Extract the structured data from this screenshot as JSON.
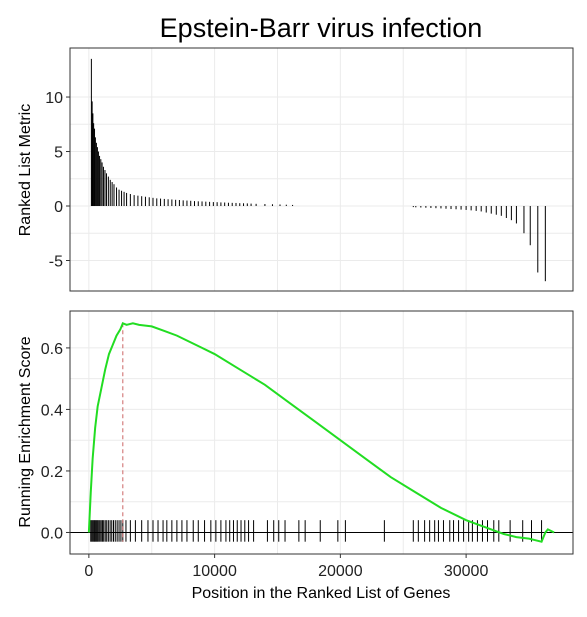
{
  "title": "Epstein-Barr virus infection",
  "chart_data": [
    {
      "type": "bar",
      "name": "ranked-list-metric",
      "ylabel": "Ranked List Metric",
      "xlabel": "",
      "xlim": [
        -1500,
        38500
      ],
      "ylim": [
        -7.8,
        14.5
      ],
      "y_ticks": [
        -5,
        0,
        5,
        10
      ],
      "x_grid": [
        0,
        10000,
        20000,
        30000
      ],
      "grid": true,
      "x": [
        200,
        260,
        320,
        380,
        450,
        520,
        600,
        680,
        760,
        850,
        950,
        1050,
        1160,
        1280,
        1400,
        1550,
        1700,
        1850,
        2000,
        2200,
        2400,
        2600,
        2800,
        3000,
        3300,
        3600,
        3900,
        4200,
        4500,
        4800,
        5100,
        5400,
        5700,
        6000,
        6300,
        6600,
        6900,
        7200,
        7500,
        7800,
        8100,
        8400,
        8700,
        9000,
        9300,
        9600,
        9900,
        10200,
        10500,
        10800,
        11100,
        11400,
        11700,
        12000,
        12300,
        12600,
        12900,
        13300,
        14000,
        14600,
        15200,
        15700,
        16200,
        25800,
        26000,
        26400,
        26800,
        27200,
        27600,
        28000,
        28400,
        28800,
        29200,
        29600,
        30000,
        30400,
        30800,
        31200,
        31600,
        32000,
        32400,
        32800,
        33200,
        33600,
        34000,
        34600,
        35100,
        35700,
        36300
      ],
      "values": [
        13.5,
        9.6,
        8.5,
        7.6,
        7.1,
        6.3,
        5.8,
        5.4,
        5.0,
        4.6,
        4.3,
        4.0,
        3.6,
        3.3,
        3.0,
        2.7,
        2.4,
        2.2,
        2.0,
        1.7,
        1.5,
        1.4,
        1.3,
        1.2,
        1.1,
        1.0,
        0.95,
        0.9,
        0.85,
        0.8,
        0.75,
        0.7,
        0.68,
        0.65,
        0.62,
        0.6,
        0.57,
        0.55,
        0.52,
        0.5,
        0.48,
        0.45,
        0.43,
        0.42,
        0.4,
        0.38,
        0.36,
        0.35,
        0.33,
        0.32,
        0.3,
        0.29,
        0.28,
        0.26,
        0.25,
        0.24,
        0.22,
        0.2,
        0.18,
        0.16,
        0.14,
        0.12,
        0.1,
        -0.1,
        -0.12,
        -0.14,
        -0.16,
        -0.18,
        -0.2,
        -0.22,
        -0.25,
        -0.28,
        -0.3,
        -0.33,
        -0.36,
        -0.4,
        -0.45,
        -0.5,
        -0.6,
        -0.7,
        -0.8,
        -0.9,
        -1.1,
        -1.3,
        -1.6,
        -2.5,
        -3.6,
        -6.1,
        -6.9
      ]
    },
    {
      "type": "line",
      "name": "running-enrichment-score",
      "xlabel": "Position in the Ranked List of Genes",
      "ylabel": "Running Enrichment Score",
      "xlim": [
        -1500,
        38500
      ],
      "ylim": [
        -0.07,
        0.72
      ],
      "x_ticks": [
        0,
        10000,
        20000,
        30000
      ],
      "y_ticks": [
        0.0,
        0.2,
        0.4,
        0.6
      ],
      "y_tick_labels": [
        "0.0",
        "0.2",
        "0.4",
        "0.6"
      ],
      "grid": true,
      "series": [
        {
          "color": "#22dd22",
          "x": [
            0,
            150,
            300,
            500,
            700,
            1000,
            1300,
            1600,
            1900,
            2200,
            2500,
            2700,
            3000,
            3500,
            4000,
            5000,
            6000,
            7000,
            8000,
            9000,
            10000,
            12000,
            14000,
            16000,
            18000,
            20000,
            22000,
            24000,
            26000,
            28000,
            30000,
            32000,
            33000,
            34000,
            35000,
            35500,
            36000,
            36300,
            36500,
            37000
          ],
          "y": [
            0.0,
            0.13,
            0.24,
            0.34,
            0.41,
            0.47,
            0.53,
            0.58,
            0.61,
            0.64,
            0.66,
            0.68,
            0.675,
            0.68,
            0.675,
            0.67,
            0.655,
            0.64,
            0.62,
            0.6,
            0.58,
            0.53,
            0.48,
            0.42,
            0.36,
            0.3,
            0.24,
            0.18,
            0.13,
            0.08,
            0.04,
            0.01,
            -0.005,
            -0.015,
            -0.02,
            -0.025,
            -0.03,
            0.0,
            0.01,
            0.0
          ]
        }
      ],
      "peak_marker": {
        "x": 2700,
        "y": 0.68,
        "color": "#cc6666",
        "style": "dashed"
      },
      "hits": [
        150,
        230,
        310,
        390,
        460,
        540,
        620,
        700,
        790,
        880,
        980,
        1080,
        1180,
        1300,
        1420,
        1550,
        1690,
        1820,
        1960,
        2100,
        2250,
        2400,
        2550,
        2700,
        2950,
        3300,
        3700,
        4200,
        4700,
        5100,
        5500,
        5900,
        6200,
        6600,
        7000,
        7400,
        7800,
        8300,
        8700,
        9200,
        9700,
        10100,
        10500,
        10900,
        11200,
        11500,
        11800,
        12100,
        12400,
        12700,
        13100,
        14200,
        14700,
        15100,
        15600,
        16700,
        17200,
        18400,
        19800,
        20400,
        23500,
        25800,
        26200,
        26700,
        27100,
        27500,
        27800,
        28200,
        28700,
        29000,
        29400,
        29800,
        30200,
        30500,
        30900,
        31300,
        31700,
        32200,
        32600,
        33500,
        34500,
        35200,
        36000
      ]
    }
  ]
}
